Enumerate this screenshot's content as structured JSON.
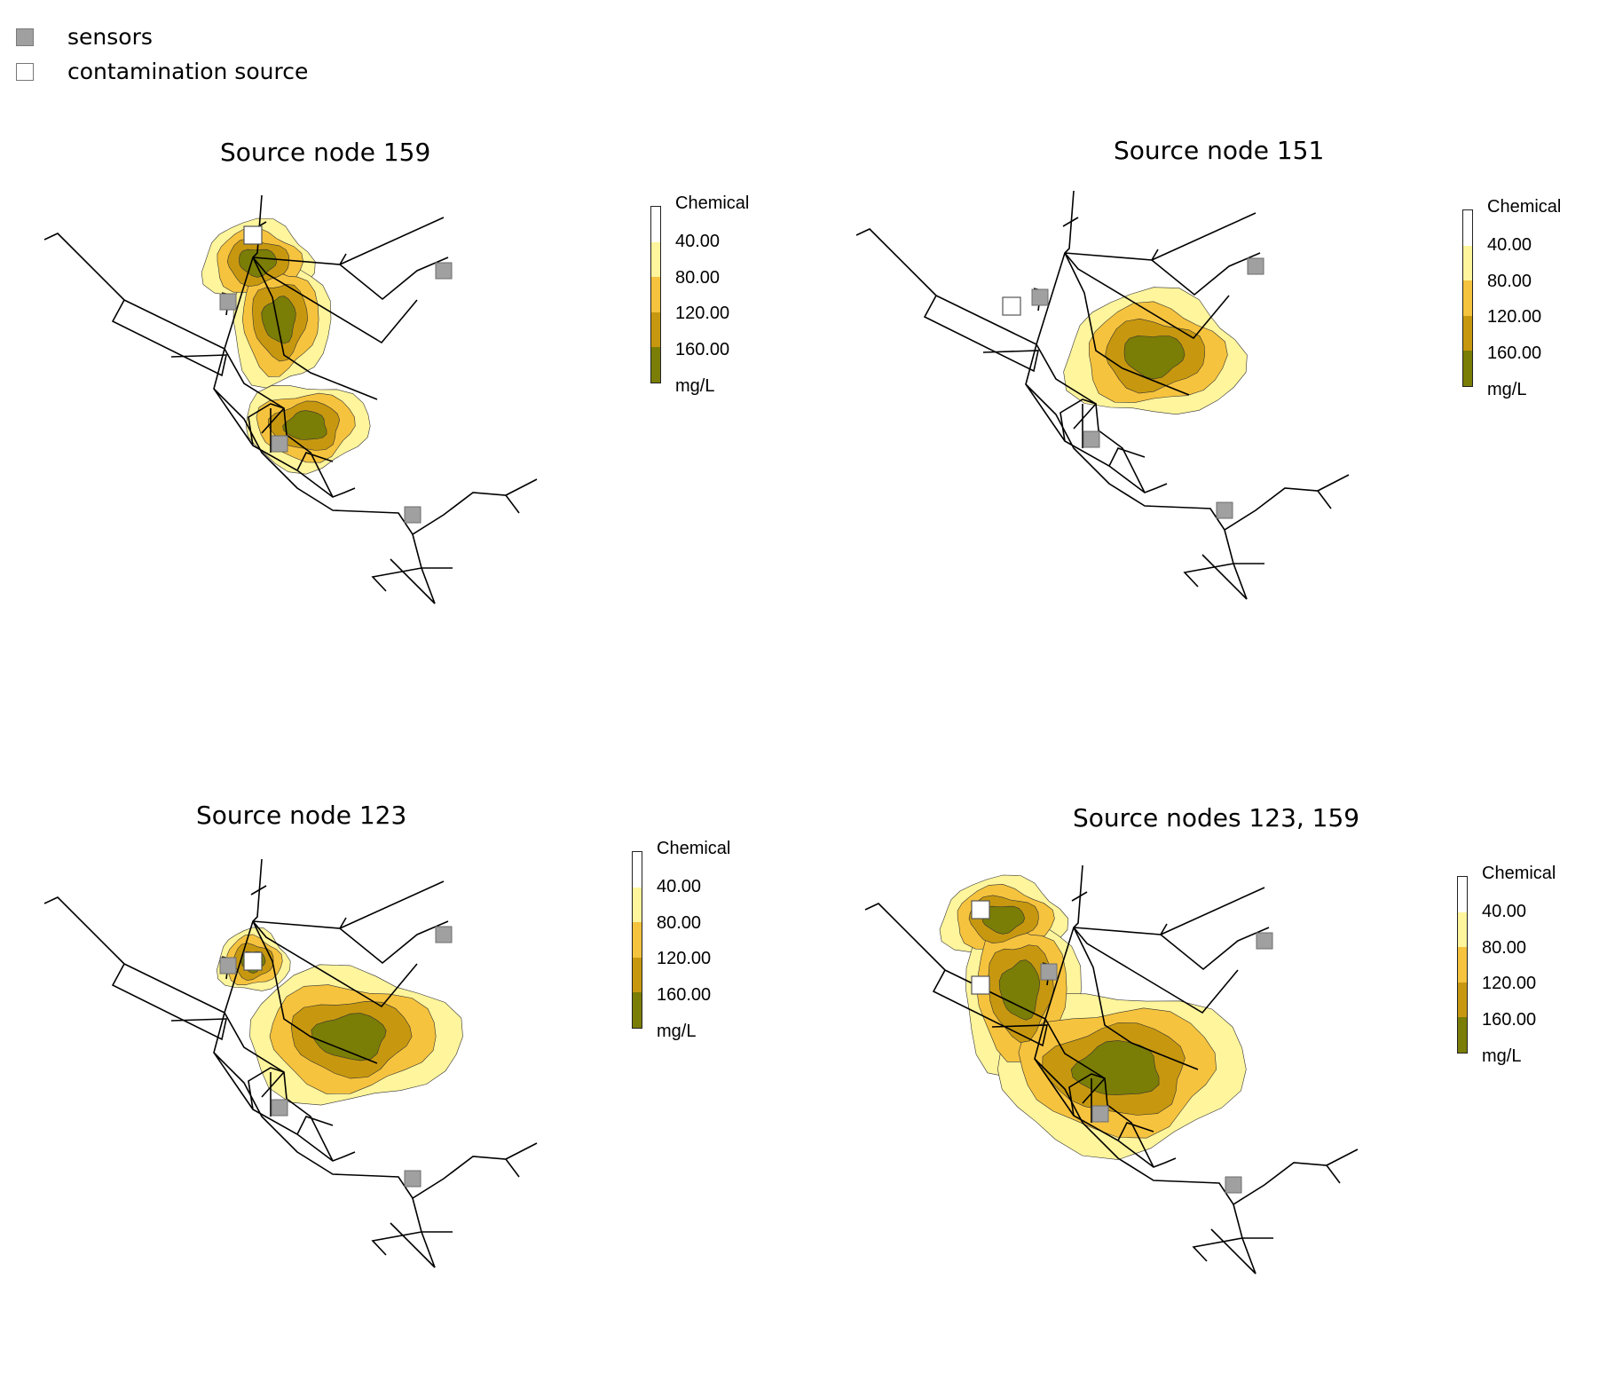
{
  "legend": {
    "sensors_label": "sensors",
    "source_label": "contamination source"
  },
  "colors": {
    "sensor": "#a0a0a0",
    "source": "#ffffff",
    "band_0_40": "#ffffff",
    "band_40_80": "#fff59c",
    "band_80_120": "#f6c33e",
    "band_120_160": "#c7980f",
    "band_160_plus": "#7a7d06",
    "pipe": "#000000"
  },
  "panels": [
    {
      "title": "Source node 159",
      "scale": {
        "title": "Chemical",
        "levels": [
          "40.00",
          "80.00",
          "120.00",
          "160.00"
        ],
        "unit": "mg/L"
      }
    },
    {
      "title": "Source node 151",
      "scale": {
        "title": "Chemical",
        "levels": [
          "40.00",
          "80.00",
          "120.00",
          "160.00"
        ],
        "unit": "mg/L"
      }
    },
    {
      "title": "Source node 123",
      "scale": {
        "title": "Chemical",
        "levels": [
          "40.00",
          "80.00",
          "120.00",
          "160.00"
        ],
        "unit": "mg/L"
      }
    },
    {
      "title": "Source nodes 123, 159",
      "scale": {
        "title": "Chemical",
        "levels": [
          "40.00",
          "80.00",
          "120.00",
          "160.00"
        ],
        "unit": "mg/L"
      }
    }
  ]
}
